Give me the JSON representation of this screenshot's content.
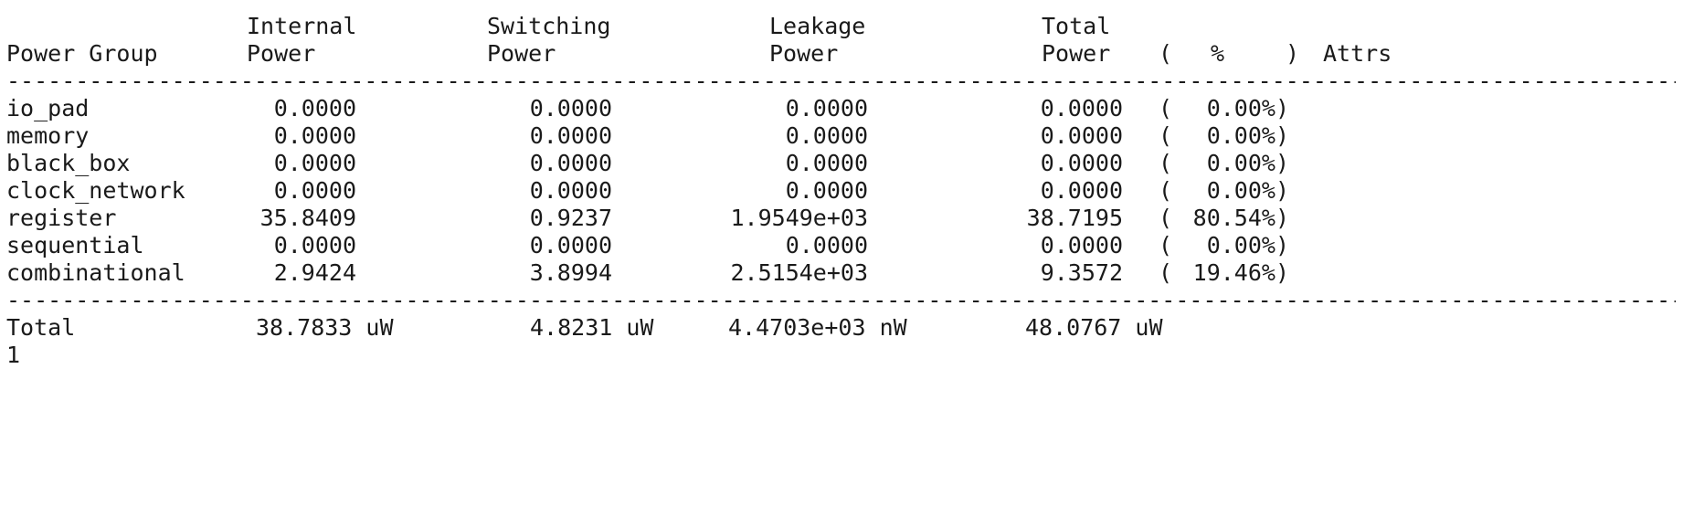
{
  "header_top": {
    "internal": "Internal",
    "switching": "Switching",
    "leakage": "Leakage",
    "total": "Total"
  },
  "header_bottom": {
    "group": "Power Group",
    "internal": "Power",
    "switching": "Power",
    "leakage": "Power",
    "total": "Power",
    "paren_open": "(",
    "percent": "%",
    "paren_close": ")",
    "attrs": "Attrs"
  },
  "separator": "-------------------------------------------------------------------------------------------------------------------------------------------",
  "rows": [
    {
      "group": "io_pad",
      "internal": "0.0000",
      "switching": "0.0000",
      "leakage": "0.0000",
      "total": "0.0000",
      "pct_open": "(",
      "pct": "0.00%)"
    },
    {
      "group": "memory",
      "internal": "0.0000",
      "switching": "0.0000",
      "leakage": "0.0000",
      "total": "0.0000",
      "pct_open": "(",
      "pct": "0.00%)"
    },
    {
      "group": "black_box",
      "internal": "0.0000",
      "switching": "0.0000",
      "leakage": "0.0000",
      "total": "0.0000",
      "pct_open": "(",
      "pct": "0.00%)"
    },
    {
      "group": "clock_network",
      "internal": "0.0000",
      "switching": "0.0000",
      "leakage": "0.0000",
      "total": "0.0000",
      "pct_open": "(",
      "pct": "0.00%)"
    },
    {
      "group": "register",
      "internal": "35.8409",
      "switching": "0.9237",
      "leakage": "1.9549e+03",
      "total": "38.7195",
      "pct_open": "(",
      "pct": "80.54%)"
    },
    {
      "group": "sequential",
      "internal": "0.0000",
      "switching": "0.0000",
      "leakage": "0.0000",
      "total": "0.0000",
      "pct_open": "(",
      "pct": "0.00%)"
    },
    {
      "group": "combinational",
      "internal": "2.9424",
      "switching": "3.8994",
      "leakage": "2.5154e+03",
      "total": "9.3572",
      "pct_open": "(",
      "pct": "19.46%)"
    }
  ],
  "total_row": {
    "group": "Total",
    "internal": "38.7833 uW",
    "switching": "4.8231 uW",
    "leakage": "4.4703e+03 nW",
    "total": "48.0767 uW"
  },
  "return_value": "1"
}
